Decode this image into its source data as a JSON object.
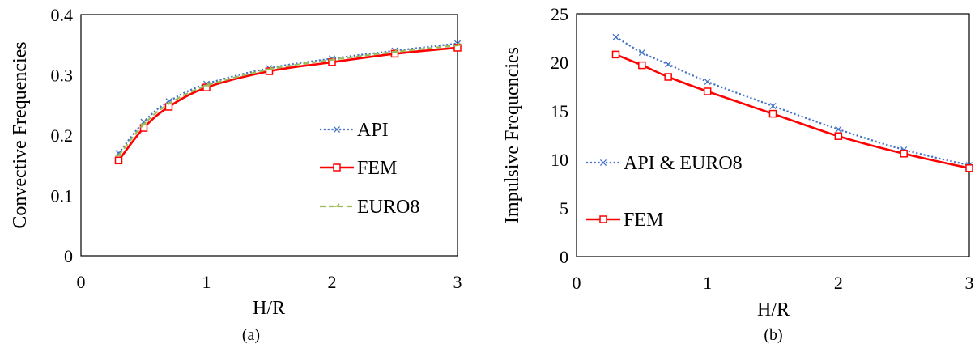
{
  "chart_data": [
    {
      "type": "line",
      "caption": "(a)",
      "xlabel": "H/R",
      "ylabel": "Convective Frequencies",
      "xlim": [
        0,
        3
      ],
      "ylim": [
        0,
        0.4
      ],
      "xticks": [
        "0",
        "1",
        "2",
        "3"
      ],
      "yticks": [
        "0",
        "0.1",
        "0.2",
        "0.3",
        "0.4"
      ],
      "legend_position": "right",
      "series": [
        {
          "name": "API",
          "color": "#4472C4",
          "style": "dotted",
          "marker": "x",
          "x": [
            0.3,
            0.5,
            0.7,
            1,
            1.5,
            2,
            2.5,
            3
          ],
          "y": [
            0.17,
            0.222,
            0.256,
            0.285,
            0.311,
            0.327,
            0.34,
            0.352
          ]
        },
        {
          "name": "FEM",
          "color": "#FF0000",
          "style": "solid",
          "marker": "square",
          "x": [
            0.3,
            0.5,
            0.7,
            1,
            1.5,
            2,
            2.5,
            3
          ],
          "y": [
            0.158,
            0.212,
            0.247,
            0.279,
            0.306,
            0.321,
            0.335,
            0.345
          ]
        },
        {
          "name": "EURO8",
          "color": "#9BBB59",
          "style": "dashed",
          "marker": "dash",
          "x": [
            0.3,
            0.5,
            0.7,
            1,
            1.5,
            2,
            2.5,
            3
          ],
          "y": [
            0.166,
            0.218,
            0.252,
            0.282,
            0.309,
            0.325,
            0.338,
            0.349
          ]
        }
      ]
    },
    {
      "type": "line",
      "caption": "(b)",
      "xlabel": "H/R",
      "ylabel": "Impulsive Frequencies",
      "xlim": [
        0,
        3
      ],
      "ylim": [
        0,
        25
      ],
      "xticks": [
        "0",
        "1",
        "2",
        "3"
      ],
      "yticks": [
        "0",
        "5",
        "10",
        "15",
        "20",
        "25"
      ],
      "legend_position": "left",
      "series": [
        {
          "name": "API & EURO8",
          "color": "#4472C4",
          "style": "dotted",
          "marker": "x",
          "x": [
            0.3,
            0.5,
            0.7,
            1,
            1.5,
            2,
            2.5,
            3
          ],
          "y": [
            22.6,
            21.0,
            19.8,
            18.0,
            15.5,
            13.1,
            11.0,
            9.4
          ]
        },
        {
          "name": "FEM",
          "color": "#FF0000",
          "style": "solid",
          "marker": "square",
          "x": [
            0.3,
            0.5,
            0.7,
            1,
            1.5,
            2,
            2.5,
            3
          ],
          "y": [
            20.8,
            19.7,
            18.5,
            17.0,
            14.7,
            12.4,
            10.6,
            9.1
          ]
        }
      ]
    }
  ]
}
